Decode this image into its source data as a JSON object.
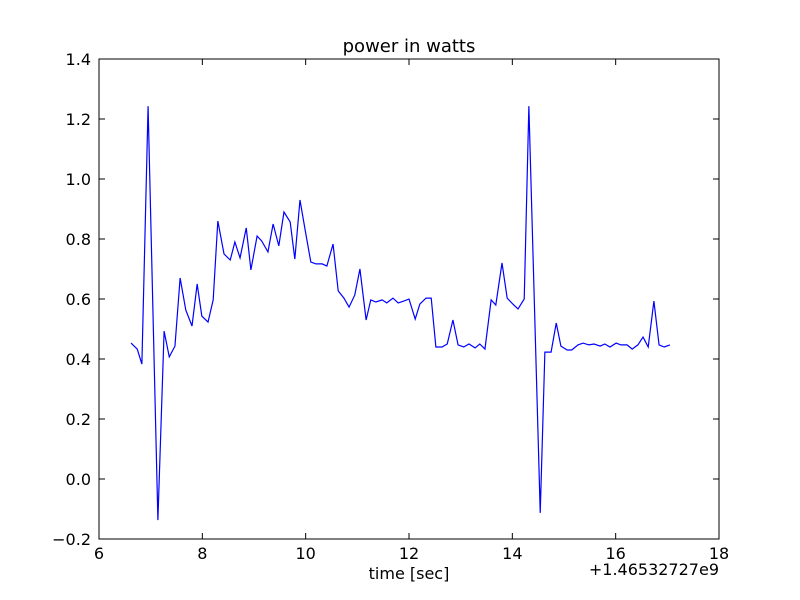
{
  "chart_data": {
    "type": "line",
    "title": "power in watts",
    "x_label": "time [sec]",
    "offset_label": "+1.46532727e9",
    "xlim": [
      6,
      18
    ],
    "xticks": [
      6,
      8,
      10,
      12,
      14,
      16,
      18
    ],
    "ylim": [
      -0.2,
      1.4
    ],
    "yticks": [
      -0.2,
      0.0,
      0.2,
      0.4,
      0.6,
      0.8,
      1.0,
      1.2,
      1.4
    ],
    "yticklabels": [
      "−0.2",
      "0.0",
      "0.2",
      "0.4",
      "0.6",
      "0.8",
      "1.0",
      "1.2",
      "1.4"
    ],
    "grid": false,
    "x": [
      6.62,
      6.74,
      6.83,
      6.95,
      7.14,
      7.26,
      7.36,
      7.47,
      7.57,
      7.68,
      7.8,
      7.9,
      7.99,
      8.11,
      8.21,
      8.3,
      8.42,
      8.54,
      8.63,
      8.73,
      8.85,
      8.94,
      9.06,
      9.15,
      9.27,
      9.37,
      9.48,
      9.58,
      9.7,
      9.79,
      9.89,
      9.99,
      10.1,
      10.2,
      10.32,
      10.41,
      10.53,
      10.63,
      10.74,
      10.84,
      10.95,
      11.05,
      11.17,
      11.26,
      11.36,
      11.48,
      11.57,
      11.69,
      11.79,
      11.9,
      12.0,
      12.12,
      12.21,
      12.33,
      12.43,
      12.52,
      12.64,
      12.74,
      12.85,
      12.95,
      13.06,
      13.16,
      13.28,
      13.37,
      13.47,
      13.59,
      13.68,
      13.8,
      13.9,
      14.01,
      14.11,
      14.23,
      14.32,
      14.54,
      14.63,
      14.75,
      14.85,
      14.94,
      15.06,
      15.15,
      15.27,
      15.37,
      15.48,
      15.58,
      15.7,
      15.79,
      15.89,
      16.01,
      16.1,
      16.22,
      16.32,
      16.43,
      16.53,
      16.63,
      16.74,
      16.84,
      16.94,
      17.05
    ],
    "series": [
      {
        "name": "power",
        "color": "#0000ff",
        "values": [
          0.453,
          0.433,
          0.383,
          1.243,
          -0.137,
          0.493,
          0.407,
          0.443,
          0.67,
          0.563,
          0.51,
          0.65,
          0.543,
          0.523,
          0.597,
          0.86,
          0.75,
          0.73,
          0.79,
          0.737,
          0.837,
          0.697,
          0.81,
          0.793,
          0.757,
          0.85,
          0.777,
          0.89,
          0.857,
          0.733,
          0.93,
          0.83,
          0.723,
          0.717,
          0.717,
          0.71,
          0.783,
          0.627,
          0.603,
          0.573,
          0.613,
          0.7,
          0.53,
          0.597,
          0.59,
          0.597,
          0.587,
          0.603,
          0.587,
          0.593,
          0.6,
          0.533,
          0.583,
          0.603,
          0.603,
          0.44,
          0.44,
          0.45,
          0.53,
          0.447,
          0.44,
          0.45,
          0.437,
          0.45,
          0.433,
          0.597,
          0.58,
          0.72,
          0.603,
          0.583,
          0.567,
          0.6,
          1.243,
          -0.113,
          0.423,
          0.423,
          0.52,
          0.443,
          0.43,
          0.43,
          0.447,
          0.453,
          0.447,
          0.45,
          0.443,
          0.45,
          0.44,
          0.453,
          0.447,
          0.447,
          0.433,
          0.447,
          0.473,
          0.44,
          0.593,
          0.447,
          0.44,
          0.447
        ]
      }
    ]
  }
}
